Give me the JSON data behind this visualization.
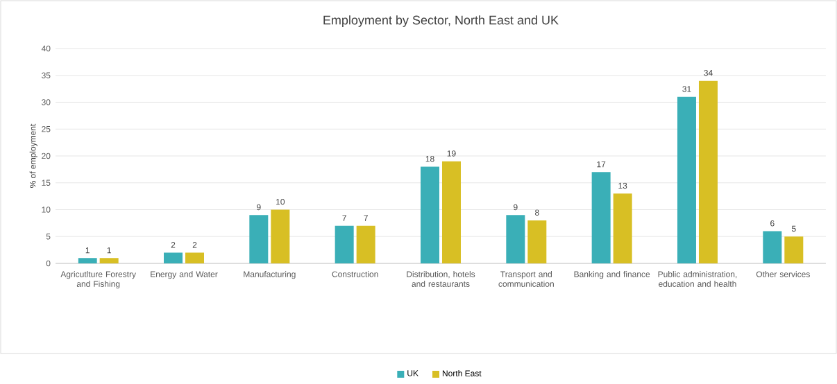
{
  "chart_data": {
    "type": "bar",
    "title": "Employment by Sector, North East and UK",
    "ylabel": "% of employment",
    "categories": [
      "Agricutlture Forestry and Fishing",
      "Energy and Water",
      "Manufacturing",
      "Construction",
      "Distribution, hotels and restaurants",
      "Transport and communication",
      "Banking and finance",
      "Public administration, education and health",
      "Other services"
    ],
    "series": [
      {
        "name": "UK",
        "color": "#3aafb7",
        "values": [
          1,
          2,
          9,
          7,
          18,
          9,
          17,
          31,
          6
        ]
      },
      {
        "name": "North East",
        "color": "#d8bf24",
        "values": [
          1,
          2,
          10,
          7,
          19,
          8,
          13,
          34,
          5
        ]
      }
    ],
    "ylim": [
      0,
      40
    ],
    "yticks": [
      0,
      5,
      10,
      15,
      20,
      25,
      30,
      35,
      40
    ],
    "grid": "y",
    "legend": "bottom",
    "data_labels": true
  }
}
